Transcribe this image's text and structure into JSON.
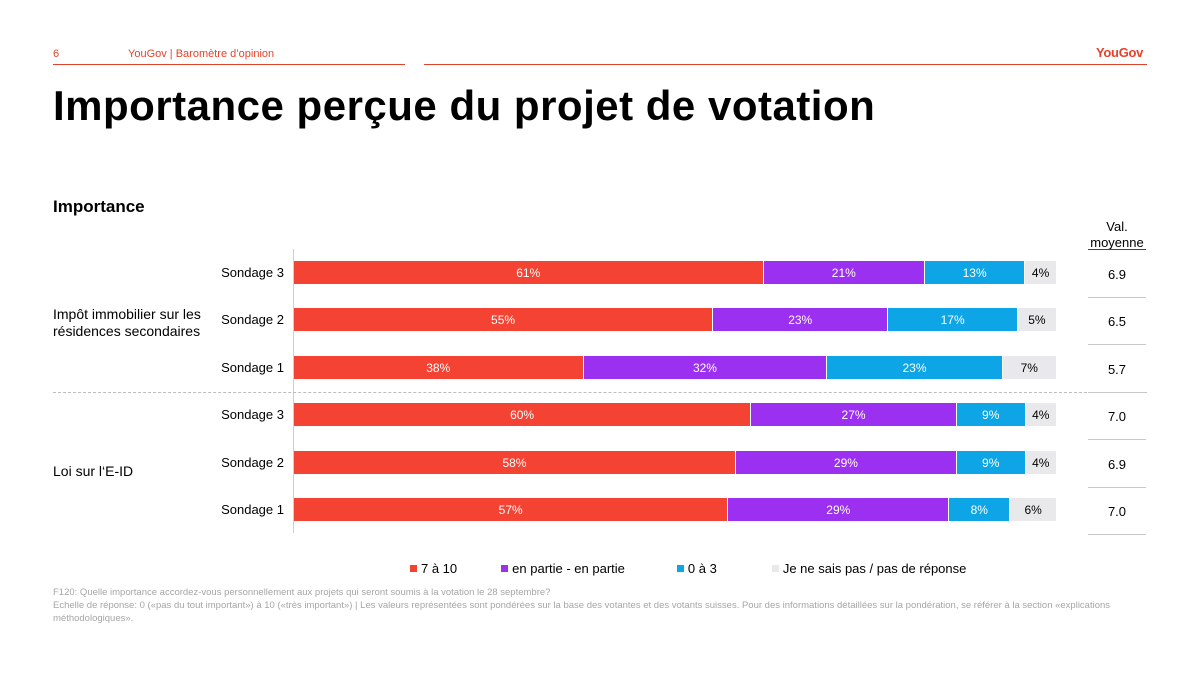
{
  "header": {
    "page_number": "6",
    "title": "YouGov | Baromètre d’opinion",
    "logo": "YouGov"
  },
  "main_title": "Importance perçue du projet de votation",
  "section_label": "Importance",
  "avg_header": "Val. moyenne",
  "colors": {
    "accent": "#e4432b",
    "seg_high": "#f44333",
    "seg_mid": "#9b30f0",
    "seg_low": "#0ea5e6",
    "seg_dk": "#e9e9eb"
  },
  "chart_data": {
    "type": "bar",
    "orientation": "horizontal",
    "stacked": true,
    "percent_scale": true,
    "xlim": [
      0,
      100
    ],
    "legend_position": "bottom",
    "series": [
      {
        "name": "7 à 10",
        "color": "#f44333"
      },
      {
        "name": "en partie - en partie",
        "color": "#9b30f0"
      },
      {
        "name": "0 à 3",
        "color": "#0ea5e6"
      },
      {
        "name": "Je ne sais pas / pas de réponse",
        "color": "#e9e9eb"
      }
    ],
    "groups": [
      {
        "label": "Impôt immobilier sur les résidences secondaires",
        "rows": [
          {
            "label": "Sondage 3",
            "values": [
              61,
              21,
              13,
              4
            ],
            "labels": [
              "61%",
              "21%",
              "13%",
              "4%"
            ],
            "avg": "6.9"
          },
          {
            "label": "Sondage 2",
            "values": [
              55,
              23,
              17,
              5
            ],
            "labels": [
              "55%",
              "23%",
              "17%",
              "5%"
            ],
            "avg": "6.5"
          },
          {
            "label": "Sondage 1",
            "values": [
              38,
              32,
              23,
              7
            ],
            "labels": [
              "38%",
              "32%",
              "23%",
              "7%"
            ],
            "avg": "5.7"
          }
        ]
      },
      {
        "label": "Loi sur l‘E-ID",
        "rows": [
          {
            "label": "Sondage 3",
            "values": [
              60,
              27,
              9,
              4
            ],
            "labels": [
              "60%",
              "27%",
              "9%",
              "4%"
            ],
            "avg": "7.0"
          },
          {
            "label": "Sondage 2",
            "values": [
              58,
              29,
              9,
              4
            ],
            "labels": [
              "58%",
              "29%",
              "9%",
              "4%"
            ],
            "avg": "6.9"
          },
          {
            "label": "Sondage 1",
            "values": [
              57,
              29,
              8,
              6
            ],
            "labels": [
              "57%",
              "29%",
              "8%",
              "6%"
            ],
            "avg": "7.0"
          }
        ]
      }
    ]
  },
  "footnote": {
    "line1": "F120: Quelle importance accordez-vous personnellement aux projets qui seront soumis  à la votation le 28 septembre?",
    "line2": "Echelle de réponse: 0 («pas du tout important») à 10 («très important») | Les valeurs représentées sont pondérées sur la base des votantes et des votants suisses. Pour des informations détaillées sur la pondération, se référer à la section «explications méthodologiques»."
  }
}
